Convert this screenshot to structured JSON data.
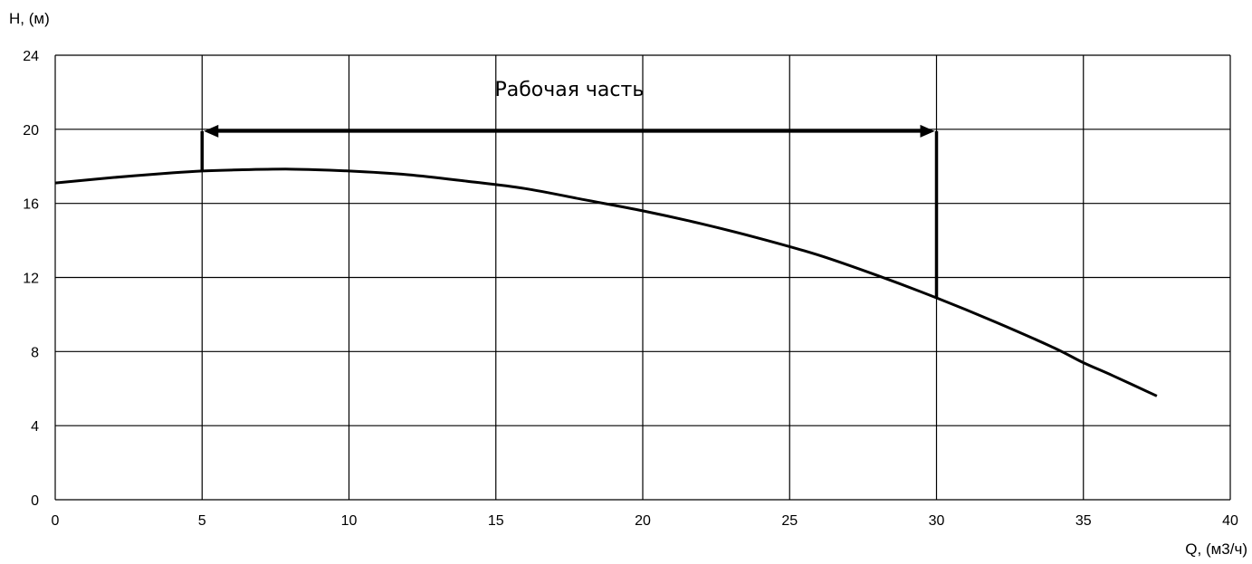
{
  "chart_data": {
    "type": "line",
    "title": "",
    "xlabel": "Q, (м3/ч)",
    "ylabel": "H, (м)",
    "xlim": [
      0,
      40
    ],
    "ylim": [
      0,
      24
    ],
    "x_ticks": [
      0,
      5,
      10,
      15,
      20,
      25,
      30,
      35,
      40
    ],
    "y_ticks": [
      0,
      4,
      8,
      12,
      16,
      20,
      24
    ],
    "grid": true,
    "legend": "none",
    "series": [
      {
        "x": [
          0,
          2,
          4,
          5,
          6,
          8,
          10,
          12,
          14,
          16,
          18,
          20,
          22,
          24,
          26,
          28,
          30,
          32,
          34,
          35,
          36,
          37.5
        ],
        "y": [
          17.1,
          17.4,
          17.65,
          17.75,
          17.8,
          17.85,
          17.75,
          17.55,
          17.2,
          16.8,
          16.2,
          15.6,
          14.9,
          14.1,
          13.2,
          12.1,
          10.9,
          9.6,
          8.2,
          7.4,
          6.7,
          5.6
        ]
      }
    ],
    "annotations": [
      {
        "text": "Рабочая часть",
        "x_range": [
          5,
          30
        ],
        "arrow_y": 19.9,
        "text_x": 17.5,
        "text_y": 22.2,
        "left_bracket": {
          "x": 5,
          "y_from": 17.75,
          "y_to": 19.9
        },
        "right_bracket": {
          "x": 30,
          "y_from": 10.9,
          "y_to": 19.9
        }
      }
    ],
    "colors": {
      "line": "#000000",
      "grid": "#000000",
      "background": "#ffffff"
    }
  }
}
